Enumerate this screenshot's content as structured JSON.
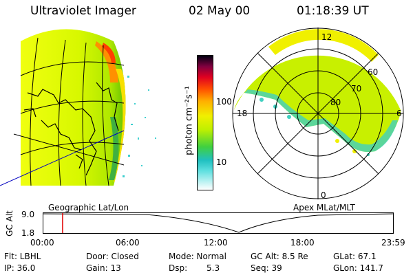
{
  "header": {
    "instrument": "Ultraviolet Imager",
    "date": "02 May 00",
    "time": "01:18:39 UT"
  },
  "colorbar": {
    "unit": "photon cm⁻²s⁻¹",
    "ticks": [
      "100",
      "10"
    ]
  },
  "polar_plot": {
    "mlt_labels": {
      "top": "12",
      "left": "18",
      "right": "6",
      "bottom": "0"
    },
    "lat_labels": [
      "60",
      "70",
      "80"
    ]
  },
  "footer": {
    "left_label": "Geographic Lat/Lon",
    "right_label": "Apex MLat/MLT",
    "gc_alt_label": "GC Alt",
    "gc_alt_ticks": [
      "9.0",
      "1.8"
    ],
    "time_ticks": [
      "00:00",
      "06:00",
      "12:00",
      "18:00",
      "23:59"
    ],
    "current_time_fraction": 0.055
  },
  "status": {
    "flt": "Flt: LBHL",
    "ip": "IP: 36.0",
    "door": "Door: Closed",
    "gain": "Gain: 13",
    "mode": "Mode: Normal",
    "dsp_label": "Dsp:",
    "dsp_value": "5.3",
    "gc_alt": "GC Alt: 8.5 Re",
    "seq": "Seq: 39",
    "glat": "GLat: 67.1",
    "glon": "GLon: 141.7"
  },
  "colors": {
    "background": "#ffffff",
    "time_marker": "#e00000",
    "image_green": "#c8f000",
    "image_yellow": "#f0f000",
    "image_orange": "#ff9000",
    "image_cyan": "#40d0d0",
    "coast": "#000000",
    "meridian_blue": "#0000c0"
  }
}
